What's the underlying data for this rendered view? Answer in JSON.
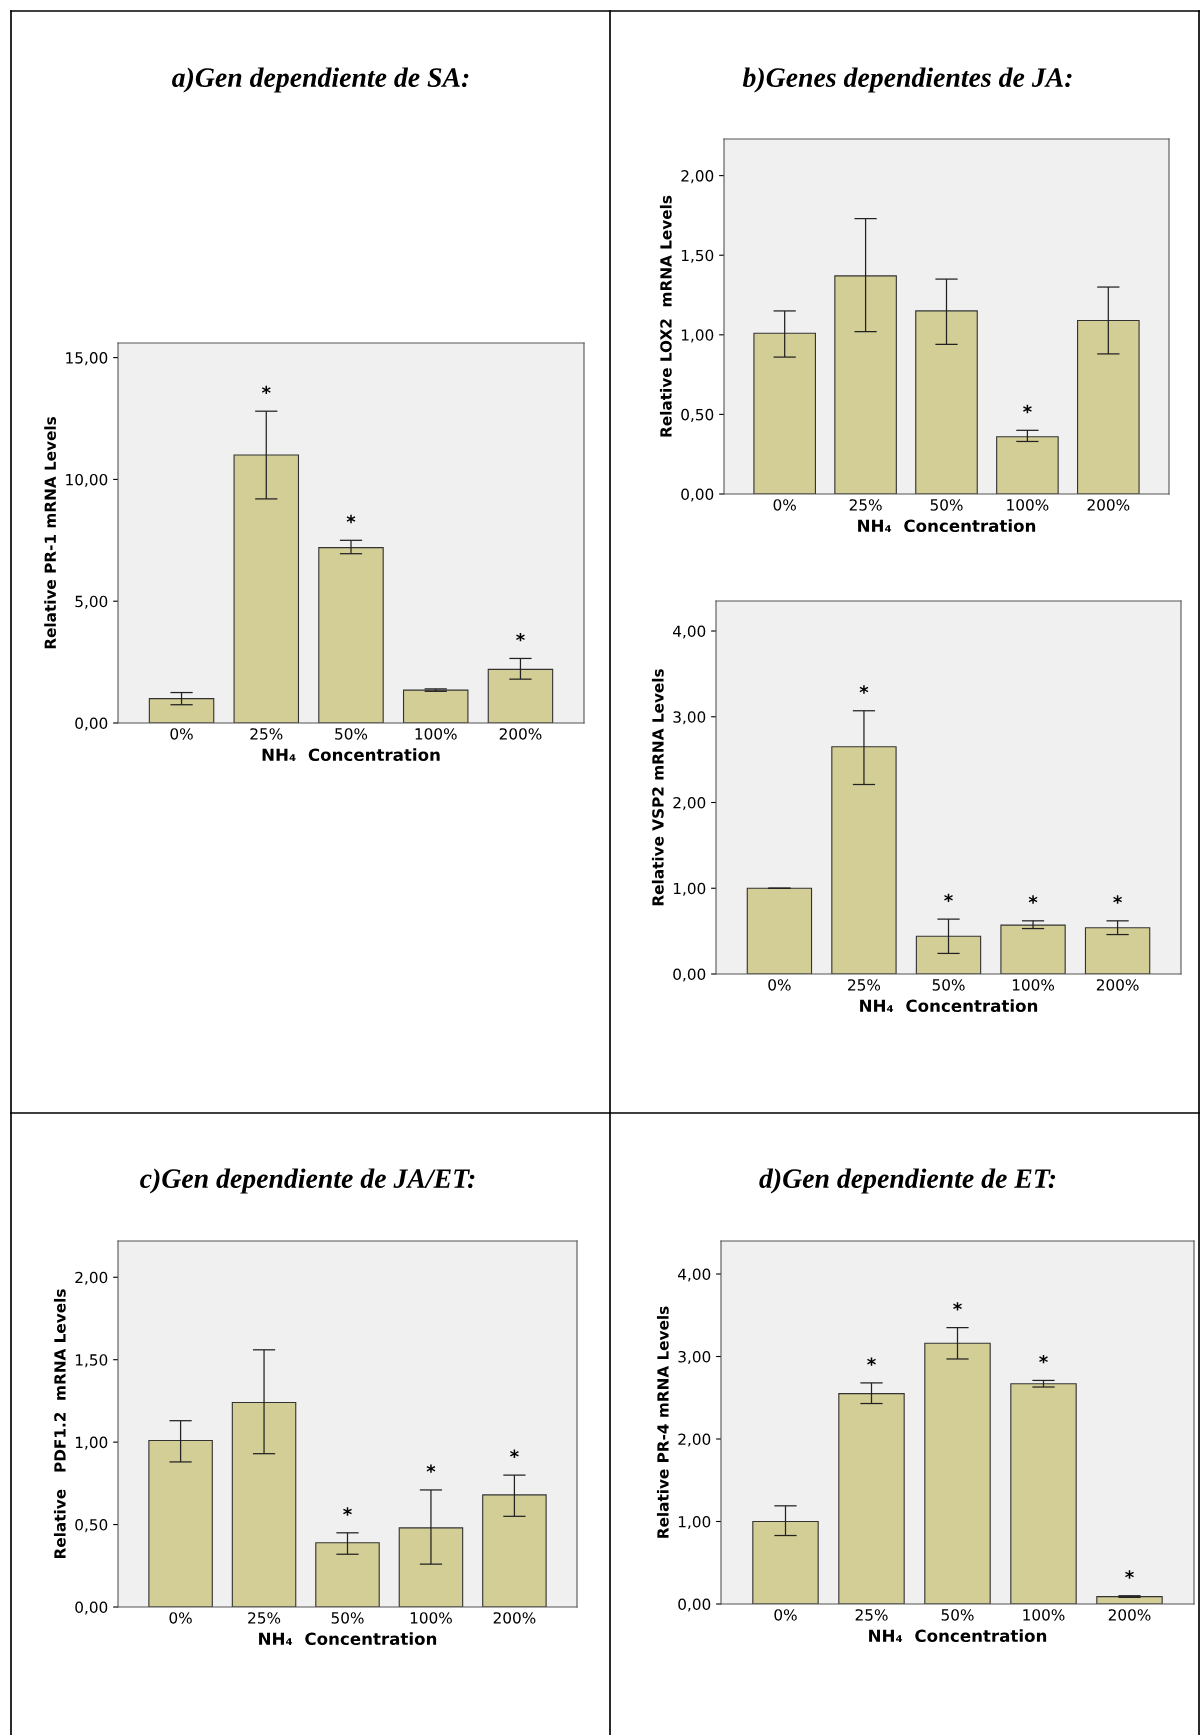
{
  "chart_data": [
    {
      "type": "bar",
      "title": "a)Gen dependiente de SA:",
      "xlabel": "NH₄  Concentration",
      "ylabel": "Relative PR-1 mRNA Levels",
      "categories": [
        "0%",
        "25%",
        "50%",
        "100%",
        "200%"
      ],
      "values": [
        1.0,
        11.0,
        7.2,
        1.35,
        2.2
      ],
      "errors": [
        [
          0.75,
          1.25
        ],
        [
          9.2,
          12.8
        ],
        [
          6.95,
          7.5
        ],
        [
          1.3,
          1.4
        ],
        [
          1.8,
          2.65
        ]
      ],
      "color": "#d3ce96",
      "ylim": [
        0,
        15.6
      ],
      "yticks": [
        {
          "value": 0,
          "label": "0,00"
        },
        {
          "value": 5,
          "label": "5,00"
        },
        {
          "value": 10,
          "label": "10,00"
        },
        {
          "value": 15,
          "label": "15,00"
        }
      ],
      "grid": false,
      "annotations": [
        {
          "text": "*",
          "x": "25%",
          "y": 12.8
        },
        {
          "text": "*",
          "x": "50%",
          "y": 7.5
        },
        {
          "text": "*",
          "x": "200%",
          "y": 2.65
        }
      ]
    },
    {
      "type": "bar",
      "title": "b)Genes dependientes de JA:",
      "xlabel": "NH₄  Concentration",
      "ylabel": "Relative LOX2  mRNA Levels",
      "categories": [
        "0%",
        "25%",
        "50%",
        "100%",
        "200%"
      ],
      "values": [
        1.01,
        1.37,
        1.15,
        0.36,
        1.09
      ],
      "errors": [
        [
          0.86,
          1.15
        ],
        [
          1.02,
          1.73
        ],
        [
          0.94,
          1.35
        ],
        [
          0.33,
          0.4
        ],
        [
          0.88,
          1.3
        ]
      ],
      "color": "#d3ce96",
      "ylim": [
        0,
        2.23
      ],
      "yticks": [
        {
          "value": 0,
          "label": "0,00"
        },
        {
          "value": 0.5,
          "label": "0,50"
        },
        {
          "value": 1,
          "label": "1,00"
        },
        {
          "value": 1.5,
          "label": "1,50"
        },
        {
          "value": 2,
          "label": "2,00"
        }
      ],
      "grid": false,
      "annotations": [
        {
          "text": "*",
          "x": "100%",
          "y": 0.4
        }
      ]
    },
    {
      "type": "bar",
      "xlabel": "NH₄  Concentration",
      "ylabel": "Relative VSP2 mRNA Levels",
      "categories": [
        "0%",
        "25%",
        "50%",
        "100%",
        "200%"
      ],
      "values": [
        1.0,
        2.65,
        0.44,
        0.57,
        0.54
      ],
      "errors": [
        [
          1.0,
          1.0
        ],
        [
          2.21,
          3.07
        ],
        [
          0.24,
          0.64
        ],
        [
          0.53,
          0.62
        ],
        [
          0.46,
          0.62
        ]
      ],
      "color": "#d3ce96",
      "ylim": [
        0,
        4.35
      ],
      "yticks": [
        {
          "value": 0,
          "label": "0,00"
        },
        {
          "value": 1,
          "label": "1,00"
        },
        {
          "value": 2,
          "label": "2,00"
        },
        {
          "value": 3,
          "label": "3,00"
        },
        {
          "value": 4,
          "label": "4,00"
        }
      ],
      "grid": false,
      "annotations": [
        {
          "text": "*",
          "x": "25%",
          "y": 3.07
        },
        {
          "text": "*",
          "x": "50%",
          "y": 0.64
        },
        {
          "text": "*",
          "x": "100%",
          "y": 0.62
        },
        {
          "text": "*",
          "x": "200%",
          "y": 0.62
        }
      ]
    },
    {
      "type": "bar",
      "title": "c)Gen dependiente de JA/ET:",
      "xlabel": "NH₄  Concentration",
      "ylabel": "Relative   PDF1.2  mRNA Levels",
      "categories": [
        "0%",
        "25%",
        "50%",
        "100%",
        "200%"
      ],
      "values": [
        1.01,
        1.24,
        0.39,
        0.48,
        0.68
      ],
      "errors": [
        [
          0.88,
          1.13
        ],
        [
          0.93,
          1.56
        ],
        [
          0.32,
          0.45
        ],
        [
          0.26,
          0.71
        ],
        [
          0.55,
          0.8
        ]
      ],
      "color": "#d3ce96",
      "ylim": [
        0,
        2.22
      ],
      "yticks": [
        {
          "value": 0,
          "label": "0,00"
        },
        {
          "value": 0.5,
          "label": "0,50"
        },
        {
          "value": 1,
          "label": "1,00"
        },
        {
          "value": 1.5,
          "label": "1,50"
        },
        {
          "value": 2,
          "label": "2,00"
        }
      ],
      "grid": false,
      "annotations": [
        {
          "text": "*",
          "x": "50%",
          "y": 0.45
        },
        {
          "text": "*",
          "x": "100%",
          "y": 0.71
        },
        {
          "text": "*",
          "x": "200%",
          "y": 0.8
        }
      ]
    },
    {
      "type": "bar",
      "title": "d)Gen dependiente de ET:",
      "xlabel": "NH₄  Concentration",
      "ylabel": "Relative PR-4 mRNA Levels",
      "categories": [
        "0%",
        "25%",
        "50%",
        "100%",
        "200%"
      ],
      "values": [
        1.0,
        2.55,
        3.16,
        2.67,
        0.09
      ],
      "errors": [
        [
          0.83,
          1.19
        ],
        [
          2.43,
          2.68
        ],
        [
          2.97,
          3.35
        ],
        [
          2.63,
          2.71
        ],
        [
          0.08,
          0.1
        ]
      ],
      "color": "#d3ce96",
      "ylim": [
        0,
        4.4
      ],
      "yticks": [
        {
          "value": 0,
          "label": "0,00"
        },
        {
          "value": 1,
          "label": "1,00"
        },
        {
          "value": 2,
          "label": "2,00"
        },
        {
          "value": 3,
          "label": "3,00"
        },
        {
          "value": 4,
          "label": "4,00"
        }
      ],
      "grid": false,
      "annotations": [
        {
          "text": "*",
          "x": "25%",
          "y": 2.68
        },
        {
          "text": "*",
          "x": "50%",
          "y": 3.35
        },
        {
          "text": "*",
          "x": "100%",
          "y": 2.71
        },
        {
          "text": "*",
          "x": "200%",
          "y": 0.1
        }
      ]
    }
  ]
}
